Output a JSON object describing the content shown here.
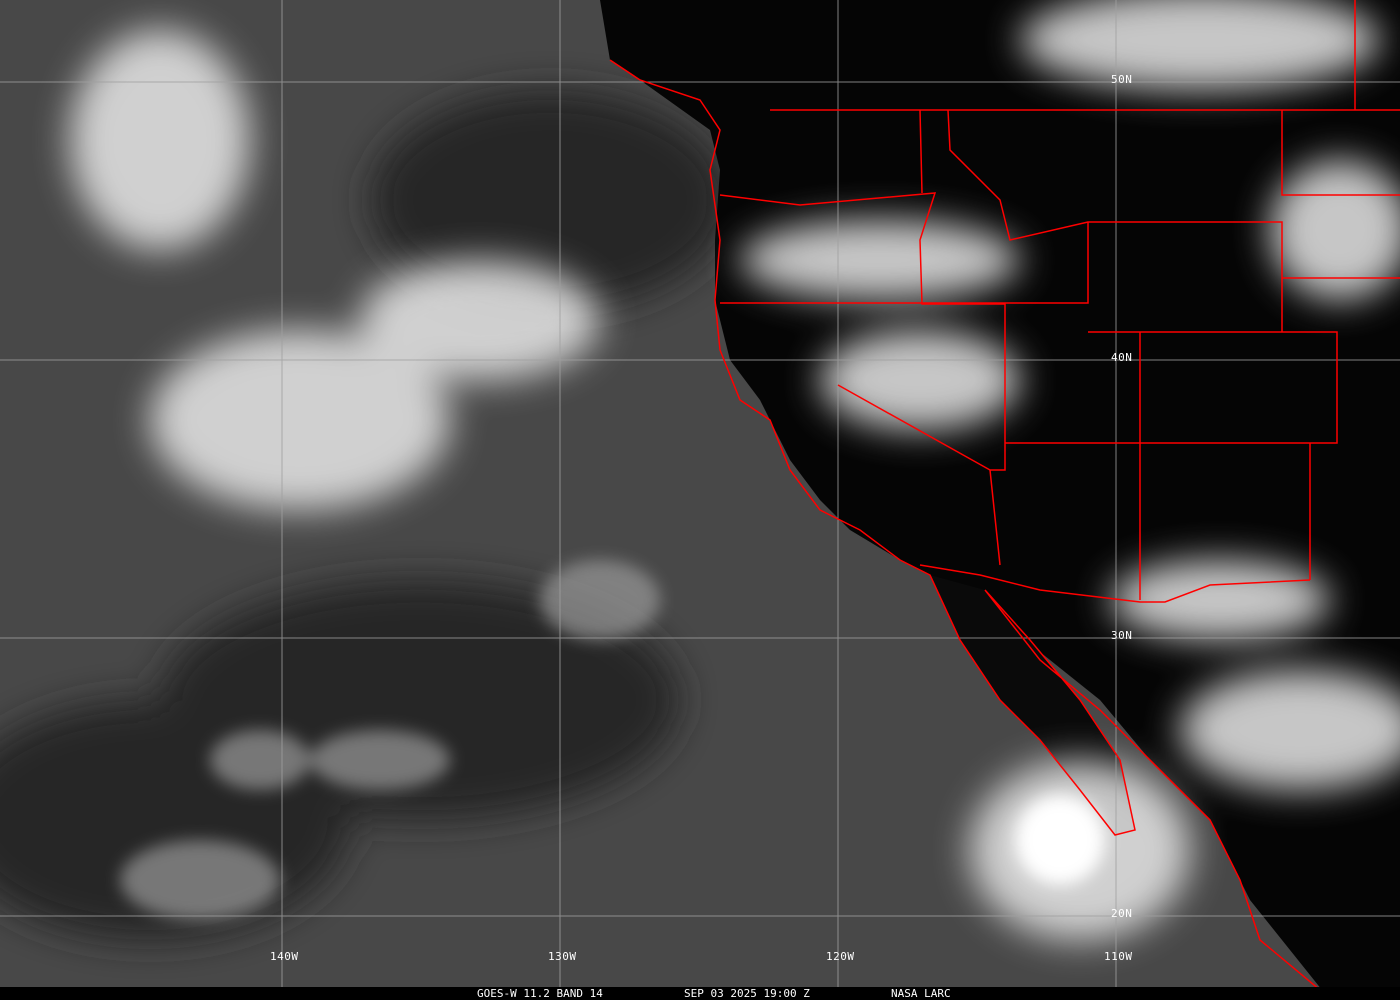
{
  "caption": {
    "satellite": "GOES-W 11.2 BAND 14",
    "datetime": "SEP 03 2025 19:00 Z",
    "source": "NASA LARC"
  },
  "grid": {
    "lat_labels": [
      "50N",
      "40N",
      "30N",
      "20N"
    ],
    "lon_labels": [
      "140W",
      "130W",
      "120W",
      "110W"
    ]
  },
  "colors": {
    "borders": "#ff0000",
    "grid": "#a0a0a0",
    "land": "#000000",
    "ocean": "#4a4a4a",
    "clouds": "#ffffff"
  }
}
